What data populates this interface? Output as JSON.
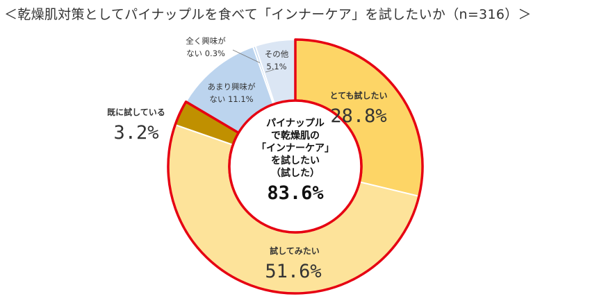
{
  "title": "＜乾燥肌対策としてパイナップルを食べて「インナーケア」を試したいか（n=316）＞",
  "chart_data": {
    "type": "pie",
    "donut": true,
    "n": 316,
    "categories": [
      "とても試したい",
      "試してみたい",
      "既に試している",
      "あまり興味がない",
      "全く興味がない",
      "その他"
    ],
    "values": [
      28.8,
      51.6,
      3.2,
      11.1,
      0.3,
      5.1
    ],
    "unit": "%",
    "colors": [
      "#fdd566",
      "#fde39a",
      "#c09000",
      "#bcd4ee",
      "#bcd4ee",
      "#dbe6f4"
    ],
    "highlight_outline_color": "#e60012",
    "labels": {
      "s0": {
        "name": "とても試したい",
        "value": "28.8%"
      },
      "s1": {
        "name": "試してみたい",
        "value": "51.6%"
      },
      "s2": {
        "name": "既に試している",
        "value": "3.2%"
      },
      "s3": {
        "line1": "あまり興味が",
        "line2": "ない 11.1%"
      },
      "s4": {
        "line1": "全く興味が",
        "line2": "ない 0.3%"
      },
      "s5": {
        "line1": "その他",
        "line2": "5.1%"
      }
    },
    "center": {
      "lines": [
        "パイナップル",
        "で乾燥肌の",
        "「インナーケア」",
        "を試したい",
        "（試した）"
      ],
      "value": "83.6%"
    }
  }
}
